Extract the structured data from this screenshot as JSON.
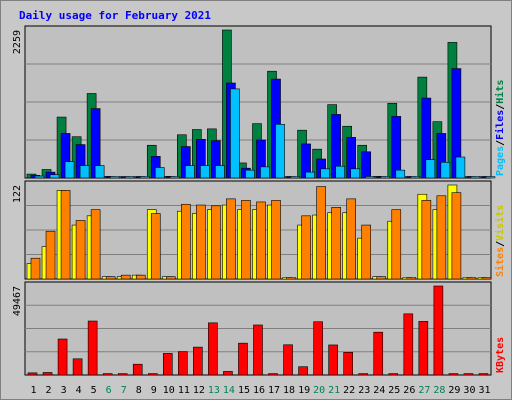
{
  "title": "Daily usage for February 2021",
  "chart_data": {
    "type": "bar",
    "days": [
      "1",
      "2",
      "3",
      "4",
      "5",
      "6",
      "7",
      "8",
      "9",
      "10",
      "11",
      "12",
      "13",
      "14",
      "15",
      "16",
      "17",
      "18",
      "19",
      "20",
      "21",
      "22",
      "23",
      "24",
      "25",
      "26",
      "27",
      "28",
      "29",
      "30",
      "31"
    ],
    "weekend_days": [
      6,
      7,
      13,
      14,
      20,
      21,
      27,
      28
    ],
    "panels": [
      {
        "id": "hits-files-pages",
        "ymax_label": "2259",
        "ymax": 2259,
        "axis_labels": [
          "Pages",
          "Files",
          "Hits"
        ],
        "series": [
          {
            "name": "Hits",
            "color": "#008040",
            "values": [
              60,
              130,
              930,
              630,
              1290,
              25,
              20,
              0,
              500,
              25,
              660,
              740,
              750,
              2259,
              230,
              830,
              1630,
              0,
              730,
              440,
              1120,
              790,
              500,
              25,
              1140,
              0,
              1540,
              860,
              2070,
              0,
              0
            ]
          },
          {
            "name": "Files",
            "color": "#0000ff",
            "values": [
              40,
              90,
              680,
              510,
              1060,
              0,
              0,
              0,
              330,
              0,
              480,
              590,
              570,
              1450,
              150,
              580,
              1510,
              0,
              520,
              290,
              970,
              620,
              400,
              0,
              940,
              0,
              1220,
              680,
              1670,
              0,
              0
            ]
          },
          {
            "name": "Pages",
            "color": "#00c0ff",
            "values": [
              30,
              50,
              250,
              190,
              190,
              0,
              0,
              0,
              160,
              0,
              190,
              190,
              190,
              1360,
              120,
              170,
              820,
              0,
              90,
              140,
              180,
              140,
              0,
              0,
              120,
              0,
              280,
              240,
              320,
              0,
              0
            ]
          }
        ]
      },
      {
        "id": "visits-sites",
        "ymax_label": "122",
        "ymax": 122,
        "axis_labels": [
          "Sites",
          "Visits"
        ],
        "series": [
          {
            "name": "Visits",
            "color": "#ffff00",
            "values": [
              20,
              42,
              115,
              70,
              82,
              3,
              3,
              5,
              90,
              3,
              88,
              85,
              90,
              96,
              90,
              90,
              96,
              0,
              70,
              83,
              86,
              86,
              53,
              3,
              75,
              0,
              110,
              90,
              122,
              0,
              0
            ]
          },
          {
            "name": "Sites",
            "color": "#ff8000",
            "values": [
              27,
              62,
              115,
              76,
              90,
              3,
              5,
              5,
              85,
              3,
              97,
              96,
              95,
              104,
              102,
              100,
              102,
              0,
              82,
              120,
              93,
              104,
              70,
              3,
              90,
              0,
              102,
              108,
              112,
              0,
              0
            ]
          }
        ]
      },
      {
        "id": "kbytes",
        "ymax_label": "49467",
        "ymax": 49467,
        "axis_labels": [
          "KBytes"
        ],
        "series": [
          {
            "name": "KBytes",
            "color": "#ff0000",
            "values": [
              1200,
              1400,
              20000,
              9000,
              30000,
              0,
              0,
              6000,
              0,
              12000,
              13000,
              15500,
              29000,
              2000,
              17700,
              27800,
              0,
              16800,
              4600,
              29600,
              16700,
              12600,
              0,
              23800,
              0,
              34000,
              29800,
              49467,
              0,
              0,
              0
            ]
          }
        ]
      }
    ]
  }
}
